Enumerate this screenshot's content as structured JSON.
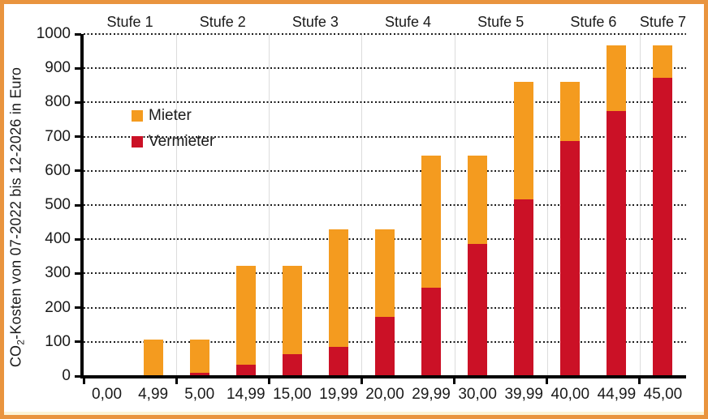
{
  "frame": {
    "border_color": "#E9943E",
    "background": "#FFFFFF",
    "bottom_highlight_color": "#FCF4D6"
  },
  "y_axis": {
    "title_pre": "CO",
    "title_sub": "2",
    "title_post": "-Kosten von 07-2022 bis 12-2026 in Euro"
  },
  "legend": {
    "items": [
      {
        "label": "Mieter",
        "color": "#F49B1F"
      },
      {
        "label": "Vermieter",
        "color": "#CB1126"
      }
    ]
  },
  "chart_data": {
    "type": "bar",
    "stacked": true,
    "title": "",
    "ylabel": "CO2-Kosten von 07-2022 bis 12-2026 in Euro",
    "categories": [
      "0,00",
      "4,99",
      "5,00",
      "14,99",
      "15,00",
      "19,99",
      "20,00",
      "29,99",
      "30,00",
      "39,99",
      "40,00",
      "44,99",
      "45,00"
    ],
    "group_labels": [
      "Stufe 1",
      "Stufe 2",
      "Stufe 3",
      "Stufe 4",
      "Stufe 5",
      "Stufe 6",
      "Stufe 7"
    ],
    "group_slot_counts": [
      2,
      2,
      2,
      2,
      2,
      2,
      1
    ],
    "series": [
      {
        "name": "Mieter",
        "color": "#F49B1F",
        "values": [
          0,
          107,
          97,
          290,
          258,
          344,
          258,
          387,
          258,
          344,
          172,
          194,
          97
        ]
      },
      {
        "name": "Vermieter",
        "color": "#CB1126",
        "values": [
          0,
          0,
          10,
          32,
          64,
          86,
          172,
          258,
          387,
          516,
          688,
          774,
          871
        ]
      }
    ],
    "ylim": [
      0,
      1000
    ],
    "yticks": [
      0,
      100,
      200,
      300,
      400,
      500,
      600,
      700,
      800,
      900,
      1000
    ],
    "grid": "horizontal-dotted",
    "legend_position": "inside-upper-left",
    "colors": {
      "grid_dotted": "#1c1c1c",
      "group_separator": "#DCDCDC",
      "axis": "#000000"
    }
  }
}
